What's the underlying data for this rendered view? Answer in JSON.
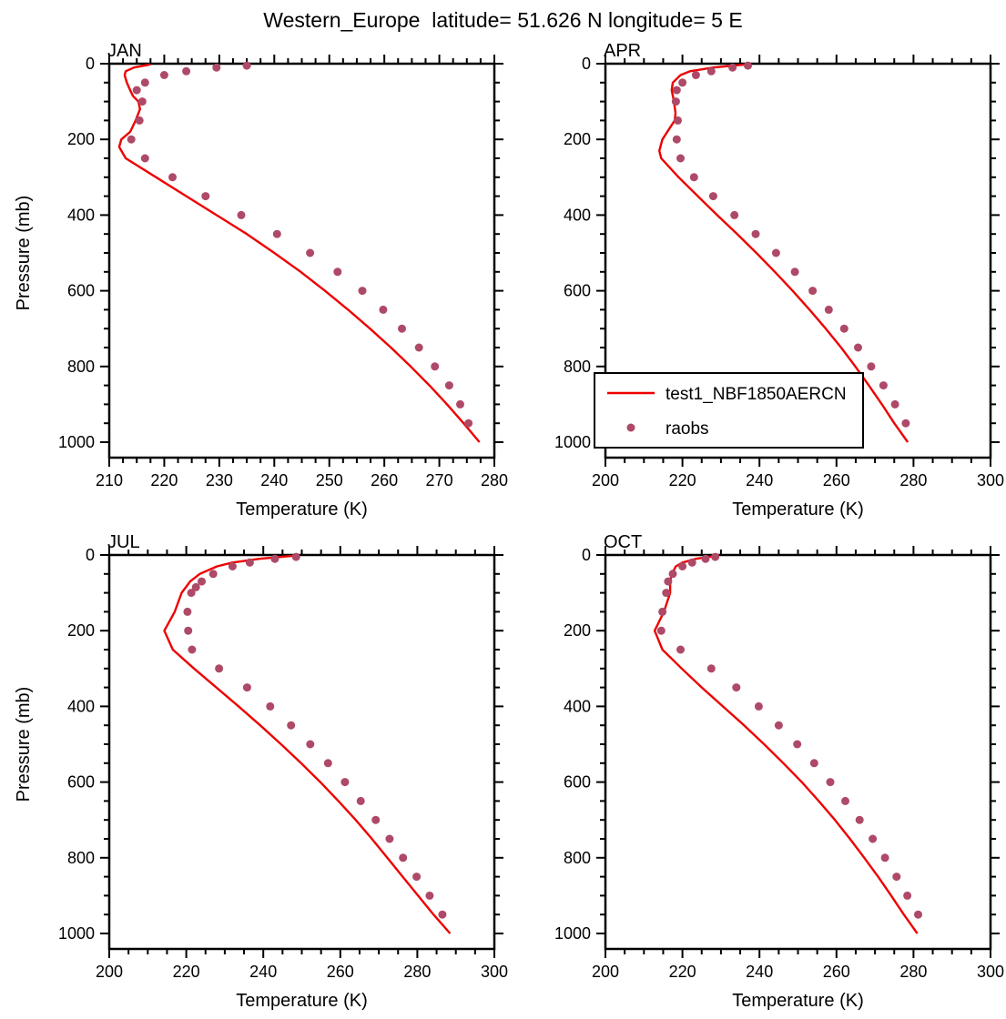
{
  "title": "Western_Europe  latitude= 51.626 N longitude= 5 E",
  "legend": {
    "panel_index": 1,
    "line_label": "test1_NBF1850AERCN",
    "dot_label": "raobs",
    "line_color": "#ee0000",
    "dot_color": "#ae4968"
  },
  "chart_data": [
    {
      "type": "line",
      "title": "JAN",
      "xlabel": "Temperature (K)",
      "ylabel": "Pressure (mb)",
      "xlim": [
        210,
        280
      ],
      "ylim": [
        1041,
        0
      ],
      "xticks": [
        210,
        220,
        230,
        240,
        250,
        260,
        270,
        280
      ],
      "xminor": 2.5,
      "yticks": [
        0,
        200,
        400,
        600,
        800,
        1000
      ],
      "yminor": 50,
      "series": [
        {
          "name": "test1_NBF1850AERCN",
          "type": "line",
          "color": "#ee0000",
          "pressure_mb": [
            2,
            10,
            20,
            30,
            50,
            70,
            85,
            100,
            120,
            150,
            180,
            200,
            220,
            250,
            300,
            350,
            400,
            450,
            500,
            550,
            600,
            650,
            700,
            750,
            800,
            850,
            900,
            950,
            1000
          ],
          "temp_k": [
            217.5,
            214.5,
            213.0,
            212.8,
            213.2,
            213.8,
            214.3,
            215.3,
            215.6,
            214.8,
            213.8,
            212.2,
            211.8,
            213.0,
            218.5,
            224.0,
            229.5,
            235.0,
            240.0,
            244.8,
            249.2,
            253.4,
            257.4,
            261.2,
            264.8,
            268.2,
            271.4,
            274.4,
            277.3
          ]
        },
        {
          "name": "raobs",
          "type": "scatter",
          "color": "#ae4968",
          "pressure_mb": [
            5,
            10,
            20,
            30,
            50,
            70,
            100,
            150,
            200,
            250,
            300,
            350,
            400,
            450,
            500,
            550,
            600,
            650,
            700,
            750,
            800,
            850,
            900,
            950
          ],
          "temp_k": [
            235,
            229.5,
            224,
            220,
            216.5,
            215,
            216,
            215.5,
            214,
            216.5,
            221.5,
            227.5,
            234,
            240.5,
            246.5,
            251.5,
            256,
            259.8,
            263.2,
            266.3,
            269.2,
            271.8,
            273.8,
            275.3
          ]
        }
      ]
    },
    {
      "type": "line",
      "title": "APR",
      "xlabel": "Temperature (K)",
      "ylabel": "Pressure (mb)",
      "xlim": [
        200,
        300
      ],
      "ylim": [
        1041,
        0
      ],
      "xticks": [
        200,
        220,
        240,
        260,
        280,
        300
      ],
      "xminor": 5,
      "yticks": [
        0,
        200,
        400,
        600,
        800,
        1000
      ],
      "yminor": 50,
      "series": [
        {
          "name": "test1_NBF1850AERCN",
          "type": "line",
          "color": "#ee0000",
          "pressure_mb": [
            2,
            10,
            20,
            30,
            50,
            70,
            100,
            130,
            150,
            200,
            230,
            250,
            300,
            350,
            400,
            450,
            500,
            550,
            600,
            650,
            700,
            750,
            800,
            850,
            900,
            950,
            1000
          ],
          "temp_k": [
            236.5,
            228,
            222,
            219.5,
            217.5,
            217.2,
            217.8,
            218.2,
            218.0,
            214.8,
            214.0,
            214.5,
            219.0,
            224.0,
            229.0,
            234.2,
            239.2,
            244.0,
            248.6,
            253.0,
            257.2,
            261.2,
            264.9,
            268.4,
            271.8,
            275.0,
            278.5
          ]
        },
        {
          "name": "raobs",
          "type": "scatter",
          "color": "#ae4968",
          "pressure_mb": [
            5,
            10,
            20,
            30,
            50,
            70,
            100,
            150,
            200,
            250,
            300,
            350,
            400,
            450,
            500,
            550,
            600,
            650,
            700,
            750,
            800,
            850,
            900,
            950
          ],
          "temp_k": [
            237,
            233,
            227.5,
            223.5,
            220,
            218.5,
            218.3,
            218.8,
            218.5,
            219.5,
            223,
            228,
            233.5,
            239,
            244.3,
            249.2,
            253.8,
            258,
            262,
            265.6,
            269,
            272.2,
            275.2,
            278
          ]
        }
      ]
    },
    {
      "type": "line",
      "title": "JUL",
      "xlabel": "Temperature (K)",
      "ylabel": "Pressure (mb)",
      "xlim": [
        200,
        300
      ],
      "ylim": [
        1041,
        0
      ],
      "xticks": [
        200,
        220,
        240,
        260,
        280,
        300
      ],
      "xminor": 5,
      "yticks": [
        0,
        200,
        400,
        600,
        800,
        1000
      ],
      "yminor": 50,
      "series": [
        {
          "name": "test1_NBF1850AERCN",
          "type": "line",
          "color": "#ee0000",
          "pressure_mb": [
            1,
            10,
            20,
            30,
            50,
            70,
            100,
            150,
            200,
            250,
            300,
            350,
            400,
            450,
            500,
            550,
            600,
            650,
            700,
            750,
            800,
            850,
            900,
            950,
            1000
          ],
          "temp_k": [
            249,
            239,
            232,
            228,
            223.5,
            221,
            218.8,
            217.0,
            214.3,
            216.5,
            222.0,
            227.8,
            233.6,
            239.2,
            244.6,
            249.8,
            254.8,
            259.5,
            264.0,
            268.2,
            272.2,
            276.2,
            280.2,
            284.2,
            288.5
          ]
        },
        {
          "name": "raobs",
          "type": "scatter",
          "color": "#ae4968",
          "pressure_mb": [
            5,
            10,
            20,
            30,
            50,
            70,
            85,
            100,
            150,
            200,
            250,
            300,
            350,
            400,
            450,
            500,
            550,
            600,
            650,
            700,
            750,
            800,
            850,
            900,
            950
          ],
          "temp_k": [
            248.5,
            243,
            236.5,
            232,
            227,
            224,
            222.5,
            221.3,
            220.3,
            220.5,
            221.5,
            228.5,
            235.8,
            241.8,
            247.2,
            252.2,
            256.8,
            261.2,
            265.3,
            269.2,
            272.8,
            276.3,
            279.8,
            283.2,
            286.5
          ]
        }
      ]
    },
    {
      "type": "line",
      "title": "OCT",
      "xlabel": "Temperature (K)",
      "ylabel": "Pressure (mb)",
      "xlim": [
        200,
        300
      ],
      "ylim": [
        1041,
        0
      ],
      "xticks": [
        200,
        220,
        240,
        260,
        280,
        300
      ],
      "xminor": 5,
      "yticks": [
        0,
        200,
        400,
        600,
        800,
        1000
      ],
      "yminor": 50,
      "series": [
        {
          "name": "test1_NBF1850AERCN",
          "type": "line",
          "color": "#ee0000",
          "pressure_mb": [
            1,
            10,
            20,
            30,
            50,
            70,
            100,
            150,
            200,
            250,
            300,
            350,
            400,
            450,
            500,
            550,
            600,
            650,
            700,
            750,
            800,
            850,
            900,
            950,
            1000
          ],
          "temp_k": [
            229.5,
            223.5,
            220.0,
            218.3,
            217.2,
            216.8,
            216.8,
            215.2,
            212.8,
            214.8,
            219.8,
            225.0,
            230.5,
            236.0,
            241.2,
            246.2,
            251.0,
            255.4,
            259.6,
            263.5,
            267.2,
            270.8,
            274.2,
            277.5,
            281.0
          ]
        },
        {
          "name": "raobs",
          "type": "scatter",
          "color": "#ae4968",
          "pressure_mb": [
            5,
            10,
            20,
            30,
            50,
            70,
            100,
            150,
            200,
            250,
            300,
            350,
            400,
            450,
            500,
            550,
            600,
            650,
            700,
            750,
            800,
            850,
            900,
            950
          ],
          "temp_k": [
            228.5,
            226,
            222.5,
            220,
            217.5,
            216.3,
            215.8,
            214.8,
            214.5,
            219.5,
            227.5,
            234,
            239.8,
            245,
            249.8,
            254.2,
            258.4,
            262.3,
            266,
            269.4,
            272.6,
            275.6,
            278.4,
            281.2
          ]
        }
      ]
    }
  ]
}
